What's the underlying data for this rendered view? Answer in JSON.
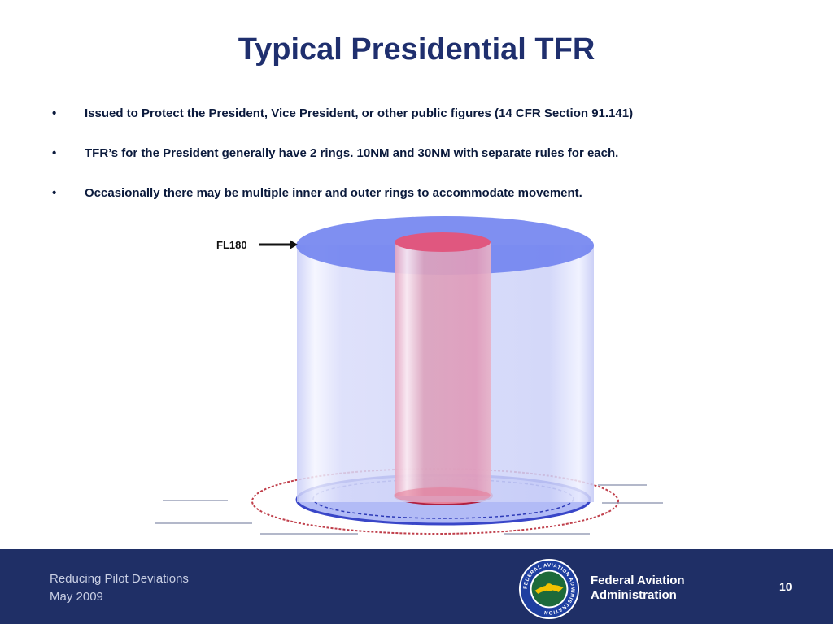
{
  "slide": {
    "title": "Typical Presidential TFR",
    "bullets": [
      {
        "marker": "•",
        "text": "Issued to Protect the President, Vice President, or other public figures (14 CFR Section 91.141)"
      },
      {
        "marker": "•",
        "text": "TFR’s for the President generally have 2 rings. 10NM and 30NM with separate rules for each."
      },
      {
        "marker": "•",
        "text": "Occasionally there may be multiple inner and outer rings to accommodate movement."
      }
    ]
  },
  "diagram": {
    "altitude_label": "FL180",
    "colors": {
      "outer_ring": "#6f7fee",
      "inner_ring": "#e0577f",
      "ground_ring": "#c0404c"
    }
  },
  "footer": {
    "presentation": "Reducing Pilot Deviations",
    "date": "May 2009",
    "agency_line1": "Federal Aviation",
    "agency_line2": "Administration",
    "page_number": "10",
    "seal_text": "FEDERAL AVIATION ADMINISTRATION",
    "background": "#1f2f66"
  }
}
